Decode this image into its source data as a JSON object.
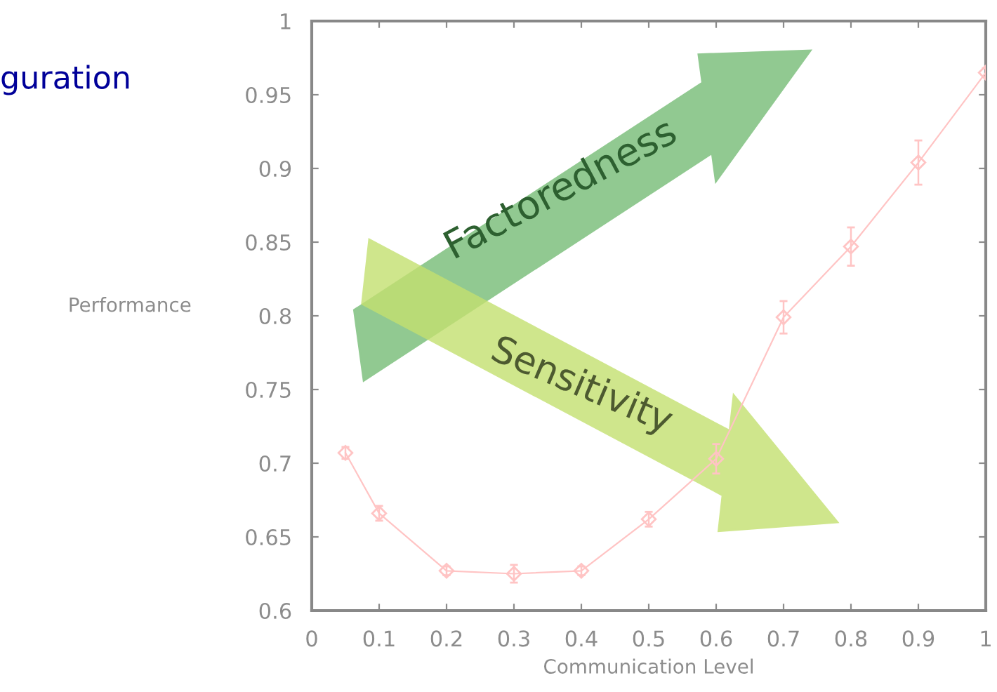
{
  "chart_data": {
    "type": "line",
    "xlabel": "Communication Level",
    "ylabel": "Performance",
    "x": [
      0.05,
      0.1,
      0.2,
      0.3,
      0.4,
      0.5,
      0.6,
      0.7,
      0.8,
      0.9,
      1.0
    ],
    "series": [
      {
        "color": "#ffc4c4",
        "values": [
          0.707,
          0.666,
          0.627,
          0.625,
          0.627,
          0.662,
          0.703,
          0.799,
          0.847,
          0.904,
          0.965
        ],
        "errors": [
          0.004,
          0.005,
          0.003,
          0.006,
          0.003,
          0.005,
          0.01,
          0.011,
          0.013,
          0.015,
          0.003
        ]
      }
    ],
    "xlim": [
      0,
      1
    ],
    "ylim": [
      0.6,
      1
    ],
    "xticks": [
      0,
      0.1,
      0.2,
      0.3,
      0.4,
      0.5,
      0.6,
      0.7,
      0.8,
      0.9,
      1
    ],
    "yticks": [
      0.6,
      0.65,
      0.7,
      0.75,
      0.8,
      0.85,
      0.9,
      0.95,
      1
    ],
    "marker": "diamond",
    "line_style": "solid",
    "grid": false,
    "legend": false,
    "annotations": [
      "guration",
      "Factoredness",
      "Sensitivity"
    ]
  }
}
